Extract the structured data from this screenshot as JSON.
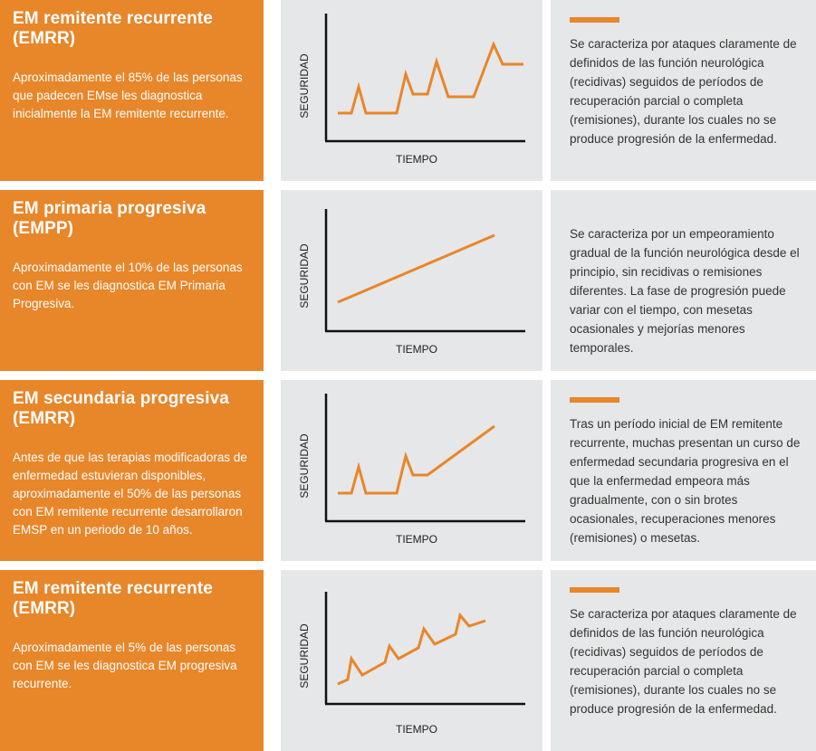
{
  "rows": [
    {
      "title": "EM remitente recurrente (EMRR)",
      "description": "Aproximadamente el 85% de las personas que padecen EMse les diagnostica inicialmente la EM remitente recurrente.",
      "axis_x": "TIEMPO",
      "axis_y": "SEGURIDAD",
      "detail": "Se caracteriza por ataques claramente de definidos de las función neurológica (recidivas) seguidos de períodos de recuperación parcial o completa (remisiones), durante los cuales no se produce progresión de la enfermedad.",
      "accent": "#e8862a"
    },
    {
      "title": "EM primaria progresiva (EMPP)",
      "description": "Aproximadamente el 10% de las personas con EM se les diagnostica EM Primaria Progresiva.",
      "axis_x": "TIEMPO",
      "axis_y": "SEGURIDAD",
      "detail": "Se caracteriza por un empeoramiento gradual de la función neurológica desde el principio, sin recidivas o remisiones diferentes. La fase de progresión puede variar con el tiempo, con mesetas ocasionales y mejorías menores temporales.",
      "accent": "#e8862a"
    },
    {
      "title": "EM secundaria progresiva (EMRR)",
      "description": "Antes de que las terapias modificadoras de enfermedad estuvieran disponibles, aproximadamente el 50% de las personas con EM remitente recurrente desarrollaron EMSP en un periodo de 10 años.",
      "axis_x": "TIEMPO",
      "axis_y": "SEGURIDAD",
      "detail": "Tras un período inicial de EM remitente recurrente, muchas presentan un curso de enfermedad secundaria progresiva en el que la enfermedad empeora más gradualmente, con o sin brotes ocasionales, recuperaciones menores (remisiones) o mesetas.",
      "accent": "#e8862a"
    },
    {
      "title": "EM remitente recurrente (EMRR)",
      "description": "Aproximadamente el 5% de las personas con EM se les diagnostica EM progresiva recurrente.",
      "axis_x": "TIEMPO",
      "axis_y": "SEGURIDAD",
      "detail": "Se caracteriza por ataques claramente de definidos de las función neurológica (recidivas) seguidos de períodos de recuperación parcial o completa (remisiones), durante los cuales no se produce progresión de la enfermedad.",
      "accent": "#e8862a"
    }
  ]
}
